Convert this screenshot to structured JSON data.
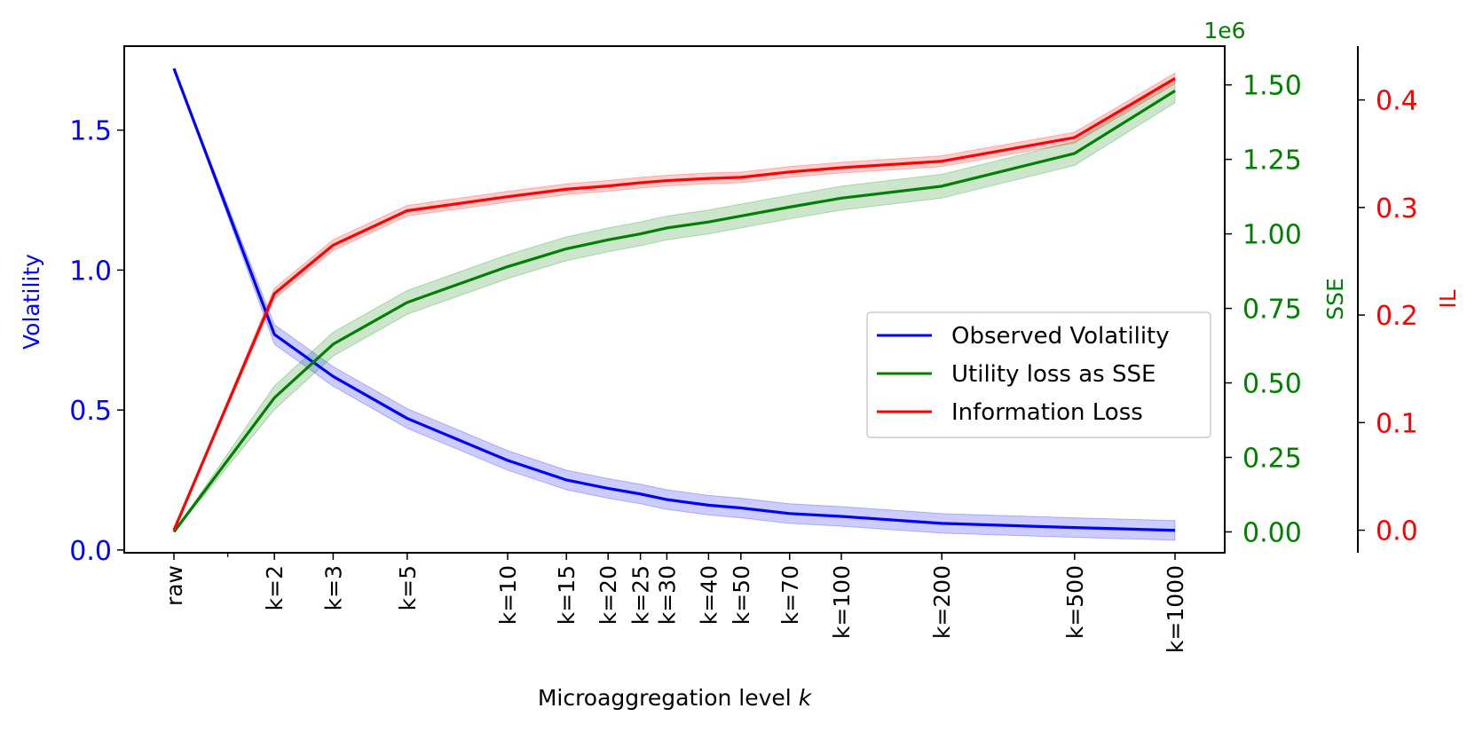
{
  "chart_data": {
    "type": "line",
    "xlabel_prefix": "Microaggregation level ",
    "xlabel_var": "k",
    "categories": [
      "raw",
      "k=2",
      "k=3",
      "k=5",
      "k=10",
      "k=15",
      "k=20",
      "k=25",
      "k=30",
      "k=40",
      "k=50",
      "k=70",
      "k=100",
      "k=200",
      "k=500",
      "k=1000"
    ],
    "x_values": [
      1,
      2,
      3,
      5,
      10,
      15,
      20,
      25,
      30,
      40,
      50,
      70,
      100,
      200,
      500,
      1000
    ],
    "x_scale": "log",
    "axes": {
      "volatility": {
        "label": "Volatility",
        "color": "#0000ff",
        "ylim": [
          -0.01,
          1.8
        ],
        "ticks": [
          0.0,
          0.5,
          1.0,
          1.5
        ],
        "tick_labels": [
          "0.0",
          "0.5",
          "1.0",
          "1.5"
        ]
      },
      "sse": {
        "label": "SSE",
        "color": "#008000",
        "ylim": [
          -0.07,
          1.63
        ],
        "ticks": [
          0.0,
          0.25,
          0.5,
          0.75,
          1.0,
          1.25,
          1.5
        ],
        "tick_labels": [
          "0.00",
          "0.25",
          "0.50",
          "0.75",
          "1.00",
          "1.25",
          "1.50"
        ],
        "offset_label": "1e6"
      },
      "il": {
        "label": "IL",
        "color": "#ff0000",
        "ylim": [
          -0.021,
          0.45
        ],
        "ticks": [
          0.0,
          0.1,
          0.2,
          0.3,
          0.4
        ],
        "tick_labels": [
          "0.0",
          "0.1",
          "0.2",
          "0.3",
          "0.4"
        ]
      }
    },
    "series": [
      {
        "name": "Observed Volatility",
        "axis": "volatility",
        "color": "#0000ff",
        "values": [
          1.72,
          0.77,
          0.62,
          0.47,
          0.32,
          0.25,
          0.22,
          0.2,
          0.18,
          0.16,
          0.15,
          0.13,
          0.12,
          0.095,
          0.08,
          0.07
        ],
        "band": 0.035
      },
      {
        "name": "Utility loss as SSE",
        "axis": "sse",
        "color": "#008000",
        "values": [
          0.0,
          0.45,
          0.63,
          0.77,
          0.89,
          0.95,
          0.98,
          1.0,
          1.02,
          1.04,
          1.06,
          1.09,
          1.12,
          1.16,
          1.27,
          1.48
        ],
        "band": 0.04
      },
      {
        "name": "Information Loss",
        "axis": "il",
        "color": "#ff0000",
        "values": [
          0.0,
          0.22,
          0.265,
          0.297,
          0.31,
          0.317,
          0.32,
          0.323,
          0.325,
          0.327,
          0.328,
          0.333,
          0.337,
          0.343,
          0.365,
          0.42
        ],
        "band": 0.005
      }
    ],
    "legend": {
      "position": "center-right",
      "entries": [
        "Observed Volatility",
        "Utility loss as SSE",
        "Information Loss"
      ]
    }
  }
}
